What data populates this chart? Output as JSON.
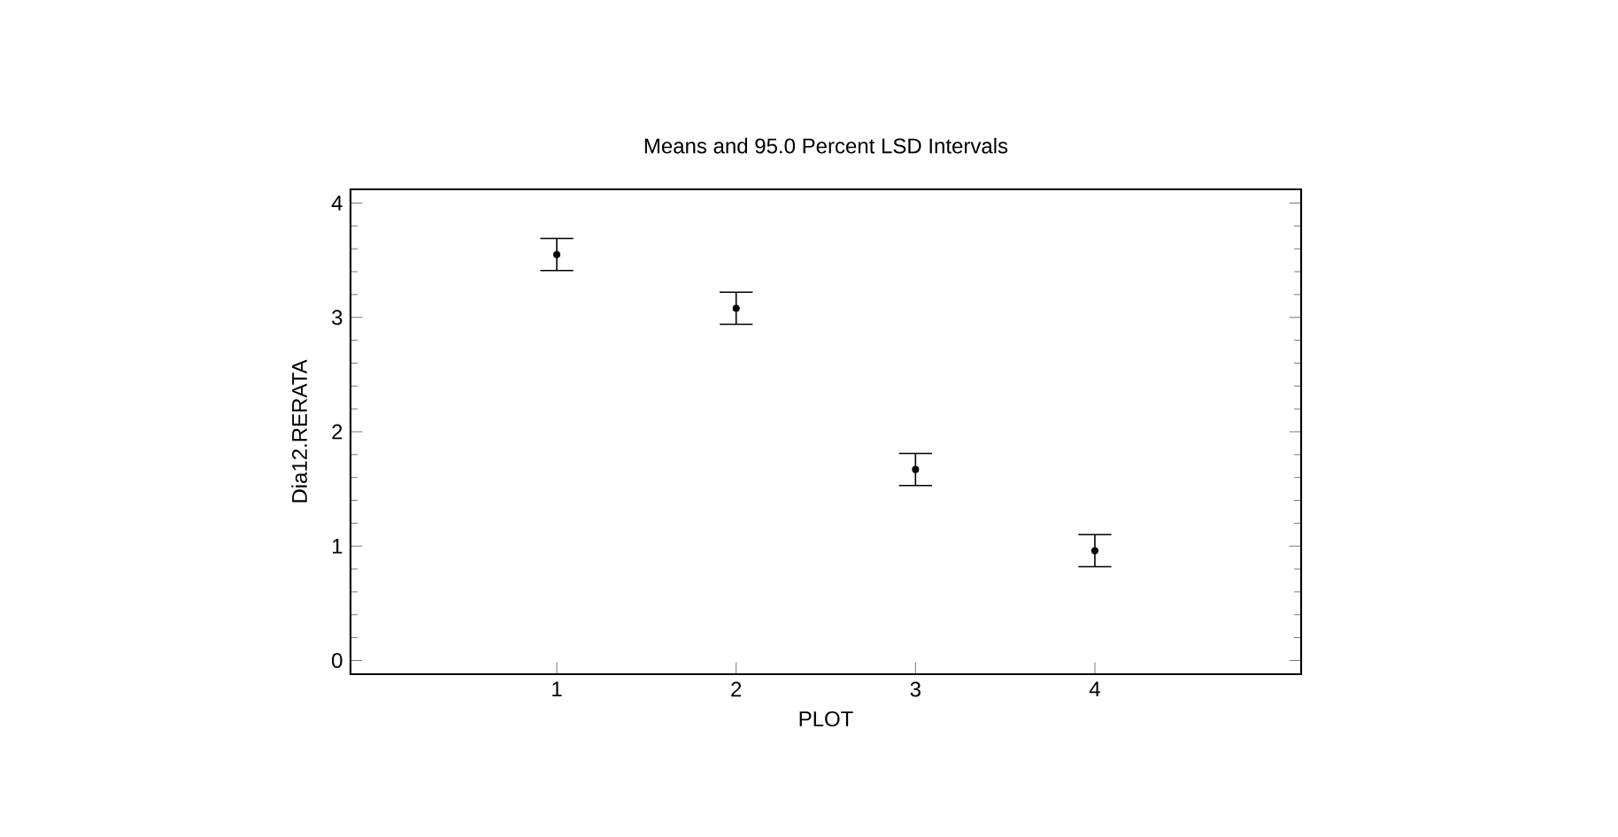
{
  "chart_data": {
    "type": "scatter",
    "title": "Means and 95.0 Percent LSD Intervals",
    "xlabel": "PLOT",
    "ylabel": "Dia12.RERATA",
    "x": [
      1,
      2,
      3,
      4
    ],
    "values": [
      3.55,
      3.08,
      1.67,
      0.96
    ],
    "errors": [
      0.14,
      0.14,
      0.14,
      0.14
    ],
    "color": "#000000",
    "marker": "circle",
    "xlim": [
      -0.15,
      5.15
    ],
    "xticks": [
      1,
      2,
      3,
      4
    ],
    "ylim": [
      -0.12,
      4.12
    ],
    "yticks": [
      0,
      1,
      2,
      3,
      4
    ],
    "grid": false
  }
}
